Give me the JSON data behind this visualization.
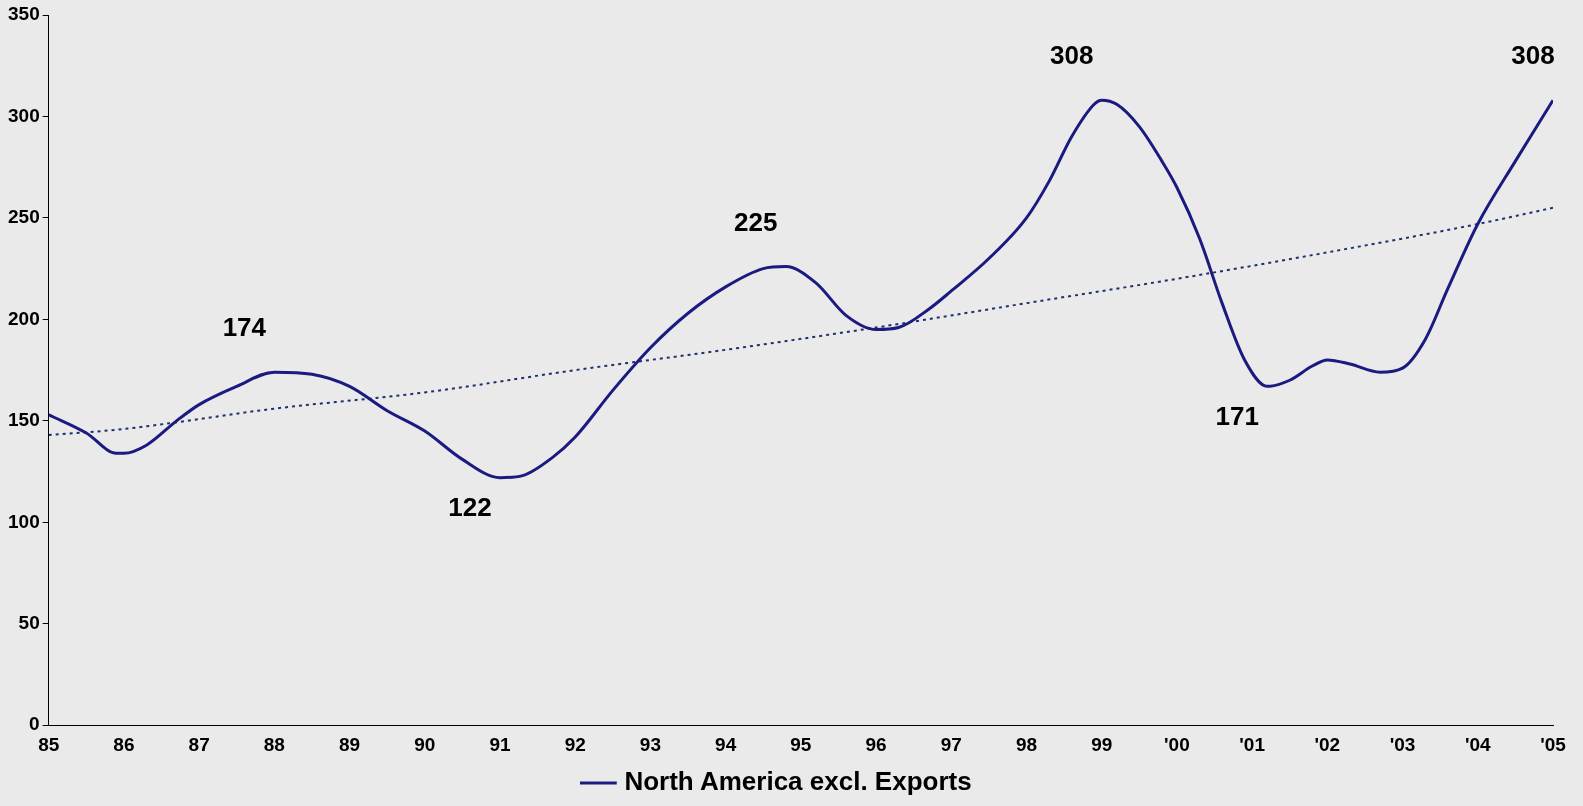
{
  "chart_data": {
    "type": "line",
    "legend": "bottom",
    "grid": false,
    "marker": "none",
    "xlim": [
      1985,
      2005
    ],
    "xticks": [
      {
        "value": 1985,
        "label": "85"
      },
      {
        "value": 1986,
        "label": "86"
      },
      {
        "value": 1987,
        "label": "87"
      },
      {
        "value": 1988,
        "label": "88"
      },
      {
        "value": 1989,
        "label": "89"
      },
      {
        "value": 1990,
        "label": "90"
      },
      {
        "value": 1991,
        "label": "91"
      },
      {
        "value": 1992,
        "label": "92"
      },
      {
        "value": 1993,
        "label": "93"
      },
      {
        "value": 1994,
        "label": "94"
      },
      {
        "value": 1995,
        "label": "95"
      },
      {
        "value": 1996,
        "label": "96"
      },
      {
        "value": 1997,
        "label": "97"
      },
      {
        "value": 1998,
        "label": "98"
      },
      {
        "value": 1999,
        "label": "99"
      },
      {
        "value": 2000,
        "label": "'00"
      },
      {
        "value": 2001,
        "label": "'01"
      },
      {
        "value": 2002,
        "label": "'02"
      },
      {
        "value": 2003,
        "label": "'03"
      },
      {
        "value": 2004,
        "label": "'04"
      },
      {
        "value": 2005,
        "label": "'05"
      }
    ],
    "ylim": [
      0,
      350
    ],
    "yticks": [
      0,
      50,
      100,
      150,
      200,
      250,
      300,
      350
    ],
    "series": [
      {
        "name": "North America excl. Exports",
        "color": "#1a1a80",
        "line_style": "solid",
        "x": [
          1985,
          1985.5,
          1985.9,
          1986,
          1986.3,
          1986.7,
          1987,
          1987.5,
          1988,
          1988.5,
          1989,
          1989.5,
          1990,
          1990.5,
          1991,
          1991.3,
          1991.7,
          1992,
          1992.5,
          1993,
          1993.5,
          1994,
          1994.5,
          1994.8,
          1995.2,
          1995.6,
          1996,
          1996.3,
          1996.7,
          1997,
          1997.5,
          1998,
          1998.3,
          1998.6,
          1998.9,
          1999,
          1999.2,
          1999.5,
          1999.8,
          2000,
          2000.3,
          2000.6,
          2000.9,
          2001.2,
          2001.5,
          2001.8,
          2002,
          2002.3,
          2002.7,
          2003,
          2003.3,
          2003.6,
          2004,
          2004.5,
          2005
        ],
        "values": [
          153,
          144,
          134,
          134,
          138,
          150,
          158,
          167,
          174,
          173,
          167,
          155,
          145,
          131,
          122,
          123,
          132,
          142,
          165,
          186,
          203,
          216,
          225,
          226,
          218,
          202,
          195,
          196,
          205,
          214,
          230,
          250,
          268,
          290,
          306,
          308,
          306,
          295,
          278,
          265,
          240,
          208,
          180,
          167,
          170,
          177,
          180,
          178,
          174,
          176,
          190,
          215,
          247,
          278,
          308
        ]
      },
      {
        "type": "line",
        "color": "#1f2f6f",
        "line_style": "dotted",
        "x": [
          1985,
          1986,
          1988,
          1990,
          1992,
          1994,
          1996,
          1998,
          2000,
          2002,
          2004,
          2005
        ],
        "values": [
          143,
          146,
          156,
          164,
          175,
          185,
          196,
          208,
          220,
          233,
          247,
          255
        ]
      }
    ],
    "annotations": [
      {
        "text": "174",
        "x": 1988,
        "y": 174
      },
      {
        "text": "122",
        "x": 1991,
        "y": 122
      },
      {
        "text": "225",
        "x": 1994.8,
        "y": 226
      },
      {
        "text": "308",
        "x": 1999,
        "y": 308
      },
      {
        "text": "171",
        "x": 2001.2,
        "y": 167
      },
      {
        "text": "308",
        "x": 2005,
        "y": 308
      }
    ]
  }
}
